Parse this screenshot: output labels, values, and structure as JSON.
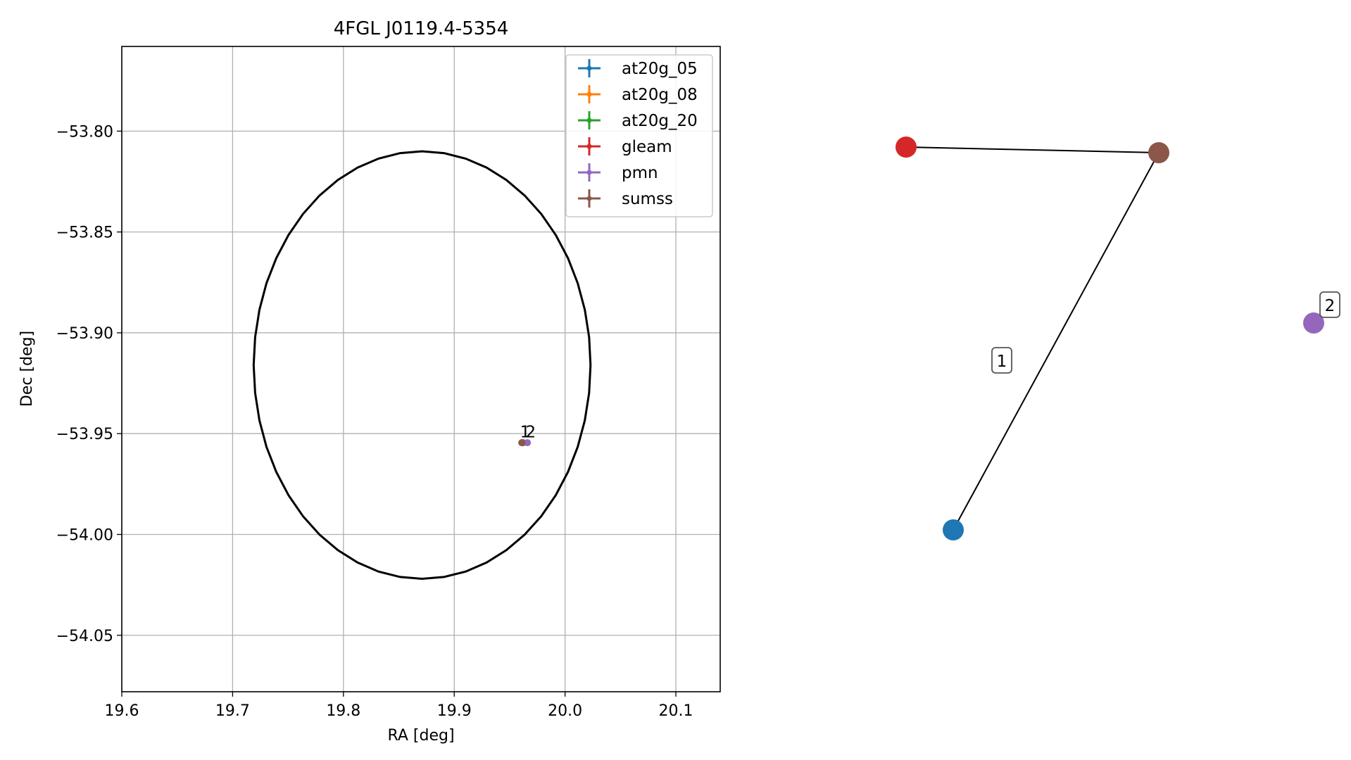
{
  "chart_data": [
    {
      "type": "scatter",
      "title": "4FGL J0119.4-5354",
      "xlabel": "RA [deg]",
      "ylabel": "Dec [deg]",
      "xlim": [
        19.6,
        20.14
      ],
      "ylim": [
        -54.078,
        -53.758
      ],
      "xticks": [
        19.6,
        19.7,
        19.8,
        19.9,
        20.0,
        20.1
      ],
      "xtick_labels": [
        "19.6",
        "19.7",
        "19.8",
        "19.9",
        "20.0",
        "20.1"
      ],
      "yticks": [
        -53.8,
        -53.85,
        -53.9,
        -53.95,
        -54.0,
        -54.05
      ],
      "ytick_labels": [
        "−53.80",
        "−53.85",
        "−53.90",
        "−53.95",
        "−54.00",
        "−54.05"
      ],
      "grid": true,
      "legend_placement": "top-right",
      "series": [
        {
          "name": "at20g_05",
          "color": "#1f77b4",
          "points": [
            {
              "ra": 19.962,
              "dec": -53.9545
            }
          ]
        },
        {
          "name": "at20g_08",
          "color": "#ff7f0e",
          "points": [
            {
              "ra": 19.962,
              "dec": -53.9545
            }
          ]
        },
        {
          "name": "at20g_20",
          "color": "#2ca02c",
          "points": [
            {
              "ra": 19.962,
              "dec": -53.9545
            }
          ]
        },
        {
          "name": "gleam",
          "color": "#d62728",
          "points": [
            {
              "ra": 19.961,
              "dec": -53.9545
            }
          ]
        },
        {
          "name": "pmn",
          "color": "#9467bd",
          "points": [
            {
              "ra": 19.966,
              "dec": -53.9545
            }
          ]
        },
        {
          "name": "sumss",
          "color": "#8c564b",
          "points": [
            {
              "ra": 19.961,
              "dec": -53.9545
            }
          ]
        }
      ],
      "point_labels": [
        {
          "text": "1",
          "ra": 19.964,
          "dec": -53.9505
        },
        {
          "text": "2",
          "ra": 19.969,
          "dec": -53.9505
        }
      ],
      "ellipse": {
        "center_ra": 19.871,
        "center_dec": -53.916,
        "semi_ra": 0.152,
        "semi_dec": 0.106,
        "color": "#000000"
      }
    },
    {
      "type": "diagram",
      "nodes": [
        {
          "id": "gleam",
          "color": "#d62728"
        },
        {
          "id": "sumss",
          "color": "#8c564b"
        },
        {
          "id": "at20g",
          "color": "#1f77b4"
        },
        {
          "id": "pmn",
          "color": "#9467bd"
        }
      ],
      "edges": [
        {
          "from": "gleam",
          "to": "sumss"
        },
        {
          "from": "sumss",
          "to": "at20g"
        }
      ],
      "labels": [
        {
          "text": "1"
        },
        {
          "text": "2"
        }
      ]
    }
  ]
}
